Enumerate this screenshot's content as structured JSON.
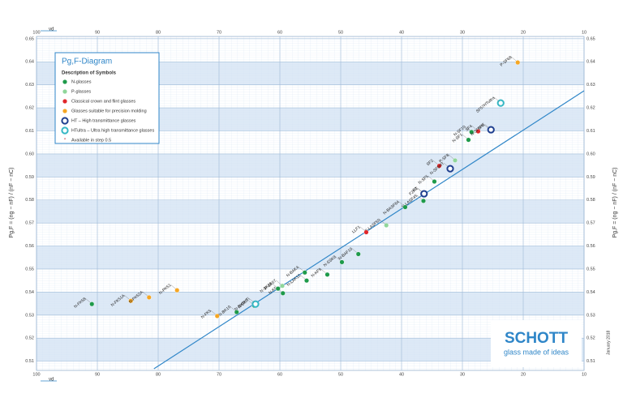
{
  "chart_data": {
    "type": "scatter",
    "title": "Pg,F-Diagram",
    "legend_heading": "Description of Symbols",
    "legend_note": "Available in step 0.5",
    "x_label": "νd",
    "y_label": "Pg,F = (ng − nF) / (nF − nC)",
    "logo": "SCHOTT",
    "logo_tagline": "glass made of ideas",
    "date_note": "January 2018",
    "xlim": [
      100,
      10
    ],
    "xticks": [
      100,
      90,
      80,
      70,
      60,
      50,
      40,
      30,
      20,
      10
    ],
    "ylim": [
      0.506,
      0.651
    ],
    "yticks": [
      {
        "value": 0.51,
        "label": "0.51"
      },
      {
        "value": 0.52,
        "label": "0.52"
      },
      {
        "value": 0.53,
        "label": "0.53"
      },
      {
        "value": 0.54,
        "label": "0.54"
      },
      {
        "value": 0.55,
        "label": "0.55"
      },
      {
        "value": 0.56,
        "label": "0.56"
      },
      {
        "value": 0.57,
        "label": "0.57"
      },
      {
        "value": 0.58,
        "label": "0.58"
      },
      {
        "value": 0.59,
        "label": "0.59"
      },
      {
        "value": 0.6,
        "label": "0.60"
      },
      {
        "value": 0.61,
        "label": "0.61"
      },
      {
        "value": 0.62,
        "label": "0.62"
      },
      {
        "value": 0.63,
        "label": "0.63"
      },
      {
        "value": 0.64,
        "label": "0.64"
      },
      {
        "value": 0.65,
        "label": "0.65"
      }
    ],
    "normal_line": {
      "x": [
        80.7,
        10
      ],
      "y": [
        0.5067,
        0.6274
      ],
      "color": "#2f86c8"
    },
    "series": [
      {
        "name": "N-glasses",
        "color": "#1e9a4a",
        "marker": "dot",
        "labels": [
          "N-FK58",
          "N-BK10",
          "N-BK7",
          "N-K5",
          "N-KF9",
          "N-BAK4",
          "N-SK16",
          "N-SSK8",
          "N-BAF10",
          "N-LAK12",
          "N-SF5",
          "N-SF1",
          "N-SF10",
          "N-LASF45",
          "N-BASF64"
        ],
        "x": [
          90.9,
          67.1,
          64.2,
          59.5,
          52.2,
          55.9,
          60.3,
          49.8,
          47.1,
          55.6,
          34.6,
          29.0,
          28.5,
          36.4,
          39.4
        ],
        "values": [
          0.5348,
          0.5313,
          0.5341,
          0.5395,
          0.5476,
          0.5485,
          0.5415,
          0.553,
          0.5565,
          0.545,
          0.588,
          0.6061,
          0.6095,
          0.5796,
          0.5769
        ]
      },
      {
        "name": "P-glasses",
        "color": "#8fd69a",
        "marker": "dot",
        "labels": [
          "P-SF8",
          "P-LASF50",
          "P-SK57"
        ],
        "x": [
          31.2,
          42.5,
          59.6
        ],
        "values": [
          0.5972,
          0.569,
          0.5427
        ]
      },
      {
        "name": "Classical crown and flint glasses",
        "color": "#e0262a",
        "marker": "dot",
        "labels": [
          "SF6",
          "SF4",
          "F2",
          "LLF1",
          "SF2"
        ],
        "x": [
          25.4,
          27.4,
          36.4,
          45.8,
          33.8
        ],
        "values": [
          0.6103,
          0.6098,
          0.5828,
          0.566,
          0.5948
        ]
      },
      {
        "name": "Glasses suitable for precision molding",
        "color": "#f5a623",
        "marker": "dot",
        "labels": [
          "N-FK51A",
          "N-PK52A",
          "N-PK51",
          "N-FK5",
          "P-SF68"
        ],
        "x": [
          84.5,
          81.5,
          76.9,
          70.3,
          20.9
        ],
        "values": [
          0.5362,
          0.5377,
          0.5408,
          0.5296,
          0.6397
        ]
      },
      {
        "name": "HT – High transmittance glasses",
        "color": "#1f3f8f",
        "marker": "ring",
        "labels": [
          "N-SF6HT",
          "F2HT",
          "N-SF5HT"
        ],
        "x": [
          25.3,
          36.3,
          32.0
        ],
        "values": [
          0.6105,
          0.5827,
          0.5936
        ]
      },
      {
        "name": "HTultra – Ultra high transmittance glasses",
        "color": "#35b7c4",
        "marker": "ring",
        "labels": [
          "SF57HTultra",
          "N-BK7HTi"
        ],
        "x": [
          23.7,
          64.0
        ],
        "values": [
          0.6221,
          0.5348
        ]
      }
    ]
  }
}
